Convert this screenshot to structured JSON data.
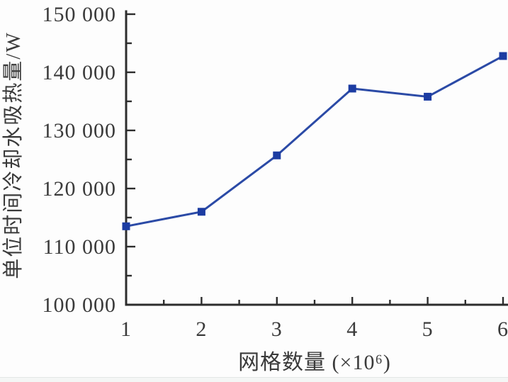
{
  "page": {
    "background": "#fdfdfd"
  },
  "chart_data": {
    "type": "line",
    "title": "",
    "xlabel": "网格数量 (×10⁶)",
    "ylabel": "单位时间冷却水吸热量/W",
    "x": [
      1,
      2,
      3,
      4,
      5,
      6
    ],
    "values": [
      113500,
      116000,
      125700,
      137200,
      135800,
      142800
    ],
    "series": [
      {
        "name": "单位时间冷却水吸热量",
        "values": [
          113500,
          116000,
          125700,
          137200,
          135800,
          142800
        ]
      }
    ],
    "xlim": [
      1,
      6
    ],
    "ylim": [
      100000,
      150000
    ],
    "x_major_ticks": [
      1,
      2,
      3,
      4,
      5,
      6
    ],
    "x_tick_labels": [
      "1",
      "2",
      "3",
      "4",
      "5",
      "6"
    ],
    "y_major_ticks": [
      100000,
      110000,
      120000,
      130000,
      140000,
      150000
    ],
    "y_tick_labels": [
      "100 000",
      "110 000",
      "120 000",
      "130 000",
      "140 000",
      "150 000"
    ],
    "x_minor_step": 0.5,
    "y_minor_step": 5000,
    "grid": false,
    "legend": false,
    "marker": "square",
    "line_color": "#2b4aa6",
    "marker_color": "#1c3ca2",
    "axis_color": "#2d2d2d",
    "text_color": "#3a3a3a"
  }
}
